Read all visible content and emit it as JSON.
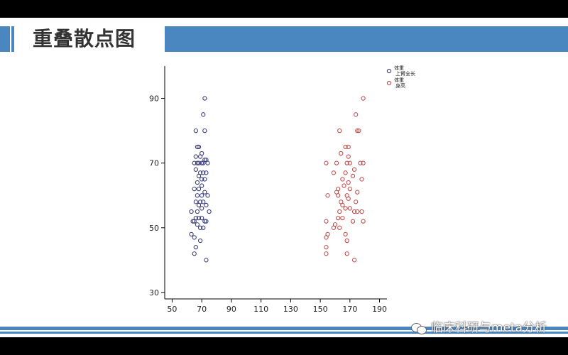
{
  "slide": {
    "title": "重叠散点图",
    "watermark": "临床科研与meta分析",
    "watermark_icon": "wechat-icon",
    "accent_color": "#4a86c0"
  },
  "chart_data": {
    "type": "scatter",
    "title": "",
    "xlabel": "",
    "ylabel": "",
    "xlim": [
      45,
      195
    ],
    "ylim": [
      28,
      100
    ],
    "xticks": [
      50,
      70,
      90,
      110,
      130,
      150,
      170,
      190
    ],
    "yticks": [
      30,
      50,
      70,
      90
    ],
    "grid": false,
    "legend": "top-right",
    "series": [
      {
        "legend_label": [
          "体重",
          "上臂全长"
        ],
        "color": "#3d3f7a",
        "points": [
          [
            72,
            90
          ],
          [
            71,
            85
          ],
          [
            66,
            80
          ],
          [
            72,
            80
          ],
          [
            68,
            75
          ],
          [
            67,
            75
          ],
          [
            70,
            73
          ],
          [
            66,
            72
          ],
          [
            69,
            72
          ],
          [
            72,
            71
          ],
          [
            73,
            71
          ],
          [
            65,
            70
          ],
          [
            67,
            70
          ],
          [
            68,
            70
          ],
          [
            70,
            70
          ],
          [
            71,
            70
          ],
          [
            74,
            70
          ],
          [
            66,
            68
          ],
          [
            69,
            67
          ],
          [
            71,
            67
          ],
          [
            73,
            67
          ],
          [
            68,
            66
          ],
          [
            70,
            65
          ],
          [
            72,
            65
          ],
          [
            67,
            64
          ],
          [
            70,
            63
          ],
          [
            65,
            62
          ],
          [
            68,
            62
          ],
          [
            72,
            61
          ],
          [
            70,
            60
          ],
          [
            67,
            60
          ],
          [
            74,
            60
          ],
          [
            66,
            58
          ],
          [
            69,
            58
          ],
          [
            71,
            58
          ],
          [
            68,
            57
          ],
          [
            73,
            57
          ],
          [
            70,
            56
          ],
          [
            67,
            55
          ],
          [
            63,
            55
          ],
          [
            75,
            55
          ],
          [
            66,
            53
          ],
          [
            68,
            53
          ],
          [
            70,
            53
          ],
          [
            72,
            52
          ],
          [
            65,
            52
          ],
          [
            73,
            52
          ],
          [
            64,
            52
          ],
          [
            67,
            51
          ],
          [
            69,
            50
          ],
          [
            71,
            50
          ],
          [
            63,
            48
          ],
          [
            65,
            47
          ],
          [
            69,
            46
          ],
          [
            66,
            44
          ],
          [
            65,
            42
          ],
          [
            73,
            40
          ]
        ]
      },
      {
        "legend_label": [
          "体重",
          "身高"
        ],
        "color": "#c0504d",
        "points": [
          [
            179,
            90
          ],
          [
            174,
            85
          ],
          [
            163,
            80
          ],
          [
            175,
            80
          ],
          [
            176,
            80
          ],
          [
            167,
            75
          ],
          [
            169,
            75
          ],
          [
            164,
            73
          ],
          [
            169,
            72
          ],
          [
            154,
            70
          ],
          [
            161,
            70
          ],
          [
            168,
            70
          ],
          [
            170,
            70
          ],
          [
            177,
            70
          ],
          [
            179,
            70
          ],
          [
            173,
            68
          ],
          [
            159,
            67
          ],
          [
            167,
            67
          ],
          [
            172,
            66
          ],
          [
            178,
            65
          ],
          [
            165,
            65
          ],
          [
            169,
            64
          ],
          [
            166,
            63
          ],
          [
            170,
            62
          ],
          [
            162,
            62
          ],
          [
            161,
            61
          ],
          [
            175,
            61
          ],
          [
            162,
            60
          ],
          [
            168,
            60
          ],
          [
            169,
            59
          ],
          [
            155,
            60
          ],
          [
            164,
            58
          ],
          [
            174,
            58
          ],
          [
            165,
            57
          ],
          [
            170,
            56
          ],
          [
            167,
            56
          ],
          [
            173,
            55
          ],
          [
            175,
            55
          ],
          [
            163,
            55
          ],
          [
            178,
            55
          ],
          [
            162,
            53
          ],
          [
            165,
            53
          ],
          [
            179,
            52
          ],
          [
            154,
            52
          ],
          [
            172,
            52
          ],
          [
            160,
            51
          ],
          [
            163,
            50
          ],
          [
            159,
            50
          ],
          [
            167,
            48
          ],
          [
            155,
            48
          ],
          [
            154,
            47
          ],
          [
            168,
            46
          ],
          [
            154,
            44
          ],
          [
            154,
            42
          ],
          [
            168,
            42
          ],
          [
            173,
            40
          ]
        ]
      }
    ]
  }
}
